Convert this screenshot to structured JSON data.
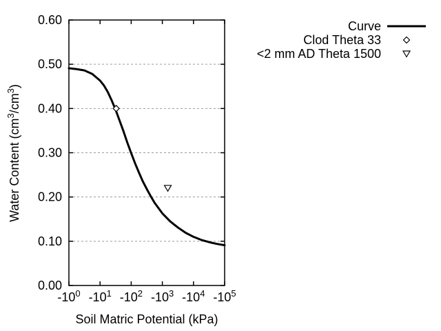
{
  "colors": {
    "background": "#ffffff",
    "axis": "#000000",
    "grid": "#9a9a9a",
    "curve": "#000000",
    "marker_fill": "#ffffff"
  },
  "chart_data": {
    "type": "line",
    "title": "",
    "xlabel": "Soil Matric Potential (kPa)",
    "ylabel": "Water Content (cm3/cm3)",
    "ylabel_parts": [
      {
        "t": "Water Content (cm"
      },
      {
        "t": "3",
        "sup": true
      },
      {
        "t": "/cm"
      },
      {
        "t": "3",
        "sup": true
      },
      {
        "t": ")"
      }
    ],
    "x_axis": {
      "scale": "negative-log10",
      "range_kpa": [
        -1,
        -100000
      ],
      "decades": [
        0,
        1,
        2,
        3,
        4,
        5
      ],
      "tick_labels": [
        {
          "base": "-10",
          "exp": "0"
        },
        {
          "base": "-10",
          "exp": "1"
        },
        {
          "base": "-10",
          "exp": "2"
        },
        {
          "base": "-10",
          "exp": "3"
        },
        {
          "base": "-10",
          "exp": "4"
        },
        {
          "base": "-10",
          "exp": "5"
        }
      ]
    },
    "y_axis": {
      "min": 0.0,
      "max": 0.6,
      "step": 0.1,
      "tick_labels": [
        "0.00",
        "0.10",
        "0.20",
        "0.30",
        "0.40",
        "0.50",
        "0.60"
      ],
      "grid_values": [
        0.1,
        0.2,
        0.3,
        0.4,
        0.5
      ],
      "grid_style": "dashed"
    },
    "series": [
      {
        "name": "Curve",
        "type": "line",
        "points_decade_theta": [
          [
            0.0,
            0.491
          ],
          [
            0.25,
            0.489
          ],
          [
            0.5,
            0.486
          ],
          [
            0.75,
            0.478
          ],
          [
            1.0,
            0.463
          ],
          [
            1.125,
            0.452
          ],
          [
            1.25,
            0.437
          ],
          [
            1.375,
            0.418
          ],
          [
            1.5,
            0.397
          ],
          [
            1.625,
            0.373
          ],
          [
            1.75,
            0.349
          ],
          [
            1.875,
            0.323
          ],
          [
            2.0,
            0.299
          ],
          [
            2.125,
            0.276
          ],
          [
            2.25,
            0.255
          ],
          [
            2.375,
            0.235
          ],
          [
            2.5,
            0.218
          ],
          [
            2.625,
            0.202
          ],
          [
            2.75,
            0.187
          ],
          [
            3.0,
            0.163
          ],
          [
            3.25,
            0.145
          ],
          [
            3.5,
            0.131
          ],
          [
            3.75,
            0.119
          ],
          [
            4.0,
            0.11
          ],
          [
            4.25,
            0.103
          ],
          [
            4.5,
            0.098
          ],
          [
            4.75,
            0.094
          ],
          [
            5.0,
            0.091
          ]
        ]
      },
      {
        "name": "Clod Theta 33",
        "type": "scatter",
        "marker": "open-diamond",
        "points_kpa_theta": [
          [
            -33,
            0.4
          ]
        ]
      },
      {
        "name": "<2 mm AD Theta 1500",
        "type": "scatter",
        "marker": "open-triangle-down",
        "points_kpa_theta": [
          [
            -1500,
            0.22
          ]
        ]
      }
    ],
    "legend": {
      "position": "top-right",
      "entries": [
        "Curve",
        "Clod Theta 33",
        "<2 mm AD Theta 1500"
      ]
    }
  }
}
